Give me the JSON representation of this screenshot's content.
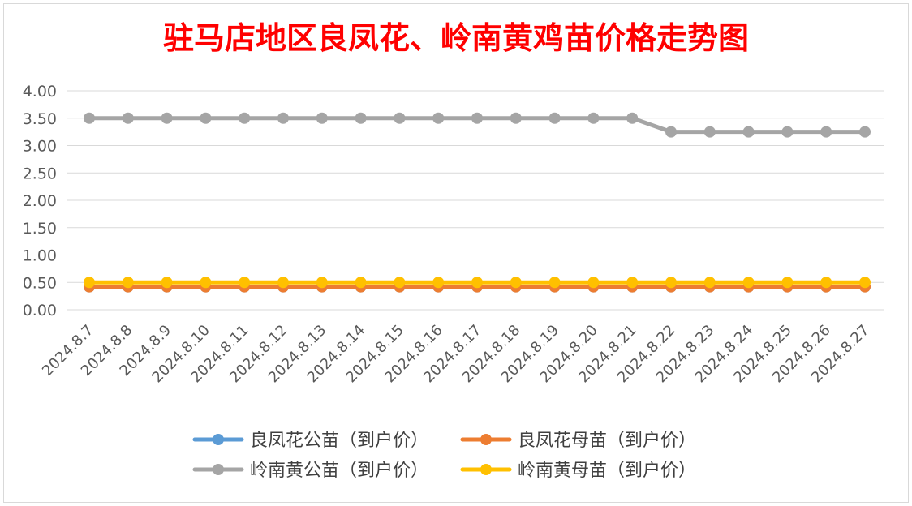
{
  "chart_data": {
    "type": "line",
    "title": "驻马店地区良凤花、岭南黄鸡苗价格走势图",
    "xlabel": "",
    "ylabel": "",
    "ylim": [
      0,
      4
    ],
    "ytick_labels": [
      "0.00",
      "0.50",
      "1.00",
      "1.50",
      "2.00",
      "2.50",
      "3.00",
      "3.50",
      "4.00"
    ],
    "grid": true,
    "legend_position": "bottom",
    "categories": [
      "2024.8.7",
      "2024.8.8",
      "2024.8.9",
      "2024.8.10",
      "2024.8.11",
      "2024.8.12",
      "2024.8.13",
      "2024.8.14",
      "2024.8.15",
      "2024.8.16",
      "2024.8.17",
      "2024.8.18",
      "2024.8.19",
      "2024.8.20",
      "2024.8.21",
      "2024.8.22",
      "2024.8.23",
      "2024.8.24",
      "2024.8.25",
      "2024.8.26",
      "2024.8.27"
    ],
    "series": [
      {
        "name": "良凤花公苗（到户价）",
        "color": "#5b9bd5",
        "values": [
          0.42,
          0.42,
          0.42,
          0.42,
          0.42,
          0.42,
          0.42,
          0.42,
          0.42,
          0.42,
          0.42,
          0.42,
          0.42,
          0.42,
          0.42,
          0.42,
          0.42,
          0.42,
          0.42,
          0.42,
          0.42
        ]
      },
      {
        "name": "良凤花母苗（到户价）",
        "color": "#ed7d31",
        "values": [
          0.42,
          0.42,
          0.42,
          0.42,
          0.42,
          0.42,
          0.42,
          0.42,
          0.42,
          0.42,
          0.42,
          0.42,
          0.42,
          0.42,
          0.42,
          0.42,
          0.42,
          0.42,
          0.42,
          0.42,
          0.42
        ]
      },
      {
        "name": "岭南黄公苗（到户价）",
        "color": "#a5a5a5",
        "values": [
          3.5,
          3.5,
          3.5,
          3.5,
          3.5,
          3.5,
          3.5,
          3.5,
          3.5,
          3.5,
          3.5,
          3.5,
          3.5,
          3.5,
          3.5,
          3.25,
          3.25,
          3.25,
          3.25,
          3.25,
          3.25
        ]
      },
      {
        "name": "岭南黄母苗（到户价）",
        "color": "#ffc000",
        "values": [
          0.5,
          0.5,
          0.5,
          0.5,
          0.5,
          0.5,
          0.5,
          0.5,
          0.5,
          0.5,
          0.5,
          0.5,
          0.5,
          0.5,
          0.5,
          0.5,
          0.5,
          0.5,
          0.5,
          0.5,
          0.5
        ]
      }
    ]
  }
}
